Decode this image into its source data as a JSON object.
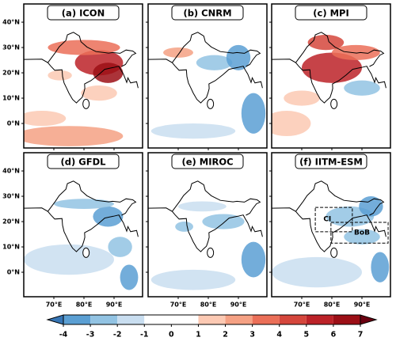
{
  "panels": [
    {
      "title": "(a)  ICON"
    },
    {
      "title": "(b)  CNRM"
    },
    {
      "title": "(c)  MPI"
    },
    {
      "title": "(d)  GFDL"
    },
    {
      "title": "(e)  MIROC"
    },
    {
      "title": "(f)  IITM-ESM"
    }
  ],
  "lat_ticks": [
    {
      "value": 40,
      "label": "40°N"
    },
    {
      "value": 30,
      "label": "30°N"
    },
    {
      "value": 20,
      "label": "20°N"
    },
    {
      "value": 10,
      "label": "10°N"
    },
    {
      "value": 0,
      "label": "0°N"
    }
  ],
  "lon_ticks": [
    {
      "value": 70,
      "label": "70°E"
    },
    {
      "value": 80,
      "label": "80°E"
    },
    {
      "value": 90,
      "label": "90°E"
    }
  ],
  "regions": [
    {
      "label": "CI"
    },
    {
      "label": "BoB"
    }
  ],
  "colorbar": {
    "ticks": [
      -4,
      -3,
      -2,
      -1,
      0,
      1,
      2,
      3,
      4,
      5,
      6,
      7
    ],
    "colors": [
      "#5b9fd3",
      "#92c3e3",
      "#c9def0",
      "#ffffff",
      "#ffffff",
      "#fcc9b3",
      "#f5a184",
      "#eb6f58",
      "#d5463c",
      "#bc2228",
      "#9c0f16"
    ],
    "under": "#3675b5",
    "over": "#6b0010"
  }
}
